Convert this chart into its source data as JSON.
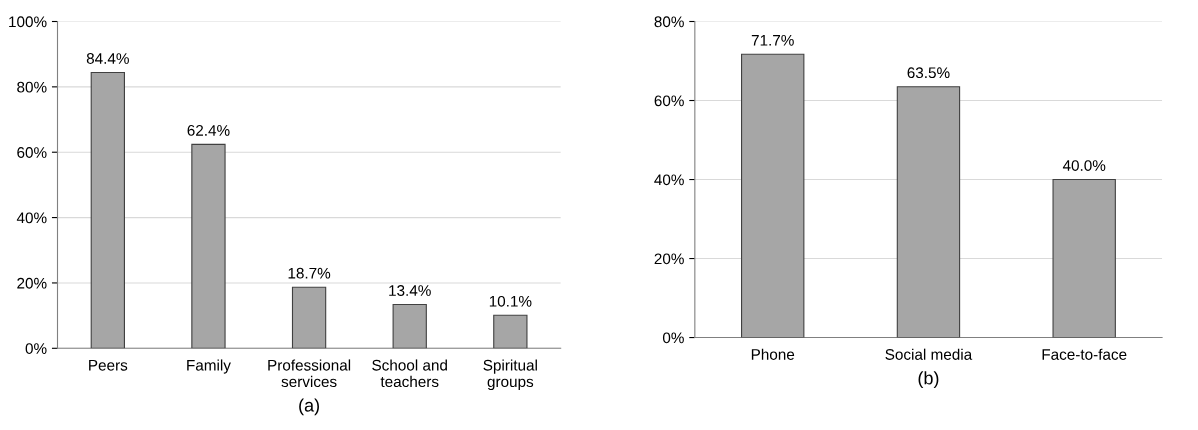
{
  "chart_data": [
    {
      "type": "bar",
      "xlabel": "(a)",
      "categories": [
        "Peers",
        "Family",
        "Professional\nservices",
        "School and\nteachers",
        "Spiritual\ngroups"
      ],
      "values": [
        84.4,
        62.4,
        18.7,
        13.4,
        10.1
      ],
      "color": "#a6a6a6",
      "value_labels": [
        "84.4%",
        "62.4%",
        "18.7%",
        "13.4%",
        "10.1%"
      ],
      "ylim": [
        0,
        100
      ],
      "yticks": [
        {
          "value": 0,
          "label": "0%"
        },
        {
          "value": 20,
          "label": "20%"
        },
        {
          "value": 40,
          "label": "40%"
        },
        {
          "value": 60,
          "label": "60%"
        },
        {
          "value": 80,
          "label": "80%"
        },
        {
          "value": 100,
          "label": "100%"
        }
      ],
      "grid": "y",
      "legend": false
    },
    {
      "type": "bar",
      "xlabel": "(b)",
      "categories": [
        "Phone",
        "Social media",
        "Face-to-face"
      ],
      "values": [
        71.7,
        63.5,
        40.0
      ],
      "color": "#a6a6a6",
      "value_labels": [
        "71.7%",
        "63.5%",
        "40.0%"
      ],
      "ylim": [
        0,
        80
      ],
      "yticks": [
        {
          "value": 0,
          "label": "0%"
        },
        {
          "value": 20,
          "label": "20%"
        },
        {
          "value": 40,
          "label": "40%"
        },
        {
          "value": 60,
          "label": "60%"
        },
        {
          "value": 80,
          "label": "80%"
        }
      ],
      "grid": "y",
      "legend": false
    }
  ]
}
